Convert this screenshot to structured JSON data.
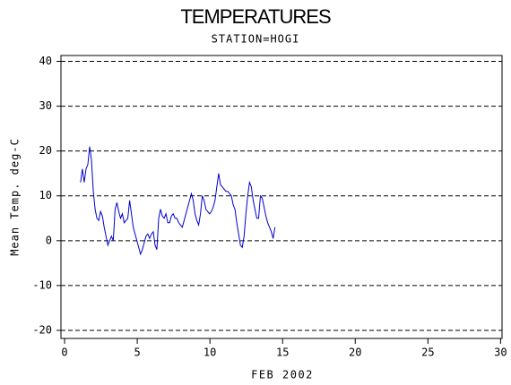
{
  "chart_data": {
    "type": "line",
    "title": "TEMPERATURES",
    "subtitle": "STATION=HOGI",
    "x_label": "FEB 2002",
    "y_label": "Mean Temp. deg-C",
    "xlim": [
      -0.25,
      30.1
    ],
    "ylim": [
      -21.8,
      41.3
    ],
    "xticks": [
      0,
      5,
      10,
      15,
      20,
      25,
      30
    ],
    "yticks": [
      -20,
      -10,
      0,
      10,
      20,
      30,
      40
    ],
    "grid": true,
    "series": [
      {
        "color": "#0000cc",
        "x": [
          1.1,
          1.225,
          1.35,
          1.475,
          1.6,
          1.725,
          1.85,
          1.975,
          2.1,
          2.225,
          2.35,
          2.475,
          2.6,
          2.725,
          2.85,
          2.975,
          3.1,
          3.225,
          3.35,
          3.475,
          3.6,
          3.725,
          3.85,
          3.975,
          4.1,
          4.225,
          4.35,
          4.475,
          4.6,
          4.725,
          4.85,
          4.975,
          5.1,
          5.225,
          5.35,
          5.475,
          5.6,
          5.725,
          5.85,
          5.975,
          6.1,
          6.225,
          6.35,
          6.475,
          6.6,
          6.725,
          6.85,
          6.975,
          7.1,
          7.225,
          7.35,
          7.475,
          7.6,
          7.725,
          7.85,
          7.975,
          8.1,
          8.225,
          8.35,
          8.475,
          8.6,
          8.725,
          8.85,
          8.975,
          9.1,
          9.225,
          9.35,
          9.475,
          9.6,
          9.725,
          9.85,
          9.975,
          10.1,
          10.225,
          10.35,
          10.475,
          10.6,
          10.725,
          10.85,
          10.975,
          11.1,
          11.225,
          11.35,
          11.475,
          11.6,
          11.725,
          11.85,
          11.975,
          12.1,
          12.225,
          12.35,
          12.475,
          12.6,
          12.725,
          12.85,
          12.975,
          13.1,
          13.225,
          13.35,
          13.475,
          13.6,
          13.725,
          13.85,
          13.975,
          14.1,
          14.225,
          14.35,
          14.475
        ],
        "values": [
          13,
          16,
          13,
          16,
          17,
          21,
          18,
          11,
          7,
          5,
          4.5,
          6.5,
          5.5,
          3,
          1,
          -1,
          0,
          1,
          0,
          7,
          8.5,
          6.5,
          5,
          6,
          4,
          4.5,
          5,
          9,
          6,
          3,
          1.5,
          0,
          -1.5,
          -3,
          -2,
          -0.5,
          1,
          1.5,
          0.5,
          1.5,
          2,
          -1,
          -2,
          5,
          7,
          5.5,
          5,
          6,
          4,
          4,
          5.5,
          6,
          5,
          5,
          4,
          3.5,
          3,
          4.5,
          6,
          7.5,
          9,
          10.5,
          9,
          6,
          4.5,
          3.5,
          6,
          10,
          9,
          7,
          6.5,
          6,
          6.5,
          7.5,
          9,
          12,
          15,
          12.5,
          12,
          11.5,
          11,
          11,
          10.5,
          10,
          8,
          7,
          4,
          1.5,
          -1,
          -1.5,
          1,
          6,
          10,
          13,
          12,
          9,
          7,
          5,
          5,
          10,
          9.5,
          7.5,
          5.5,
          4,
          3,
          2,
          0.5,
          3
        ]
      }
    ]
  }
}
